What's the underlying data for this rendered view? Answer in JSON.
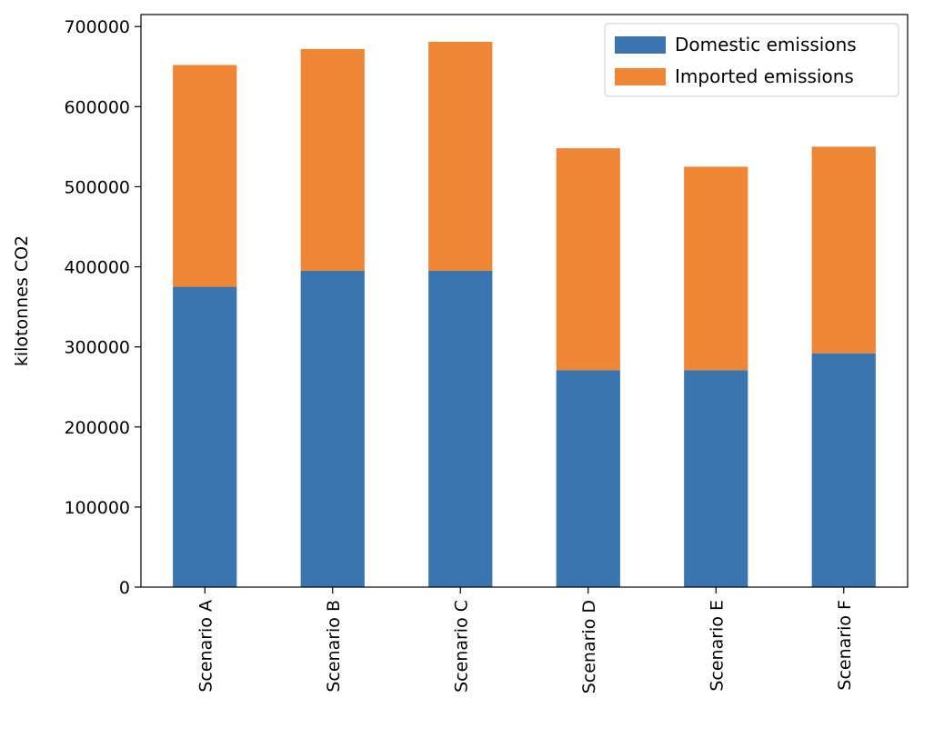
{
  "chart_data": {
    "type": "bar",
    "stacked": true,
    "categories": [
      "Scenario A",
      "Scenario B",
      "Scenario C",
      "Scenario D",
      "Scenario E",
      "Scenario F"
    ],
    "series": [
      {
        "name": "Domestic emissions",
        "color": "#3b75af",
        "values": [
          375000,
          395000,
          395000,
          271000,
          271000,
          292000
        ]
      },
      {
        "name": "Imported emissions",
        "color": "#ef8636",
        "values": [
          277000,
          277000,
          286000,
          277000,
          254000,
          258000
        ]
      }
    ],
    "title": "",
    "xlabel": "",
    "ylabel": "kilotonnes CO2",
    "ylim": [
      0,
      715000
    ],
    "yticks": [
      0,
      100000,
      200000,
      300000,
      400000,
      500000,
      600000,
      700000
    ],
    "ytick_labels": [
      "0",
      "100000",
      "200000",
      "300000",
      "400000",
      "500000",
      "600000",
      "700000"
    ],
    "grid": false,
    "legend_position": "top-right"
  }
}
